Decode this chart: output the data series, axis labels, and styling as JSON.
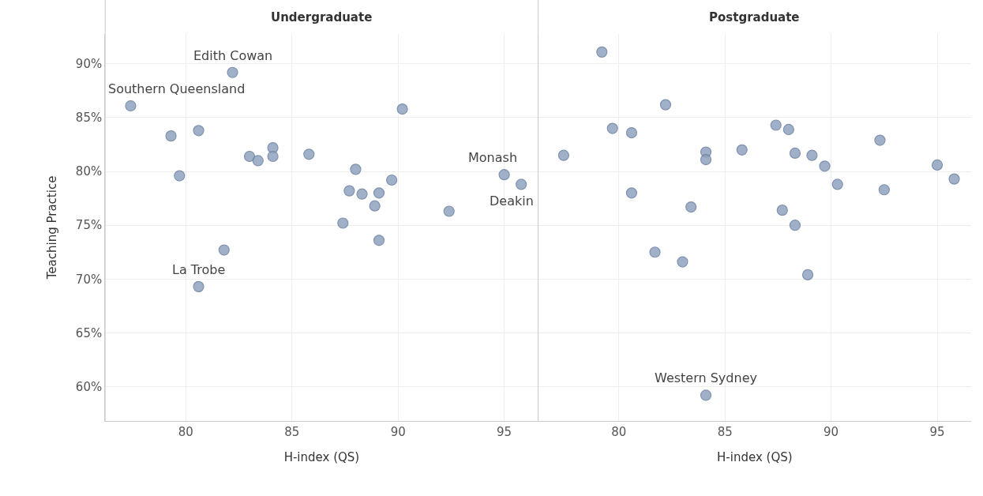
{
  "chart_data": [
    {
      "type": "scatter",
      "title": "Undergraduate",
      "xlabel": "H-index (QS)",
      "ylabel": "Teaching Practice",
      "color": "#8fa3bf",
      "marker": "circle",
      "grid": true,
      "x": [
        77.4,
        82.2,
        79.3,
        80.6,
        79.7,
        83.0,
        83.4,
        84.1,
        84.1,
        85.8,
        88.0,
        87.7,
        88.3,
        89.1,
        89.7,
        88.9,
        87.4,
        89.1,
        90.2,
        92.4,
        95.0,
        95.8,
        81.8,
        80.6
      ],
      "values": [
        86.1,
        89.2,
        83.3,
        83.8,
        79.6,
        81.4,
        81.0,
        82.2,
        81.4,
        81.6,
        80.2,
        78.2,
        77.9,
        78.0,
        79.2,
        76.8,
        75.2,
        73.6,
        85.8,
        76.3,
        79.7,
        78.8,
        72.7,
        69.3
      ],
      "xlim": [
        76.2,
        96.6
      ],
      "xticks": [
        80,
        85,
        90,
        95
      ],
      "ylim": [
        56.8,
        92.8
      ],
      "yticks": [
        {
          "value": 60,
          "label": "60%"
        },
        {
          "value": 65,
          "label": "65%"
        },
        {
          "value": 70,
          "label": "70%"
        },
        {
          "value": 75,
          "label": "75%"
        },
        {
          "value": 80,
          "label": "80%"
        },
        {
          "value": 85,
          "label": "85%"
        },
        {
          "value": 90,
          "label": "90%"
        }
      ],
      "annotations": [
        {
          "text": "Southern Queensland",
          "x": 77.4,
          "y": 86.1
        },
        {
          "text": "Edith Cowan",
          "x": 82.2,
          "y": 89.2
        },
        {
          "text": "Monash",
          "x": 95.0,
          "y": 79.7
        },
        {
          "text": "Deakin",
          "x": 95.8,
          "y": 78.8
        },
        {
          "text": "La Trobe",
          "x": 80.6,
          "y": 69.3
        }
      ]
    },
    {
      "type": "scatter",
      "title": "Postgraduate",
      "xlabel": "H-index (QS)",
      "color": "#8fa3bf",
      "marker": "circle",
      "grid": true,
      "tick_labels": "x",
      "x": [
        79.2,
        82.2,
        79.7,
        80.6,
        77.4,
        84.1,
        84.1,
        85.8,
        87.4,
        88.0,
        88.3,
        89.1,
        89.7,
        90.3,
        92.3,
        92.5,
        95.0,
        95.8,
        80.6,
        83.4,
        87.7,
        88.3,
        81.7,
        83.0,
        88.9,
        84.1
      ],
      "values": [
        91.1,
        86.2,
        84.0,
        83.6,
        81.5,
        81.8,
        81.1,
        82.0,
        84.3,
        83.9,
        81.7,
        81.5,
        80.5,
        78.8,
        82.9,
        78.3,
        80.6,
        79.3,
        78.0,
        76.7,
        76.4,
        75.0,
        72.5,
        71.6,
        70.4,
        59.2
      ],
      "xlim": [
        76.2,
        96.6
      ],
      "xticks": [
        80,
        85,
        90,
        95
      ],
      "ylim": [
        56.8,
        92.8
      ],
      "yticks": [
        {
          "value": 60,
          "label": null
        },
        {
          "value": 65,
          "label": null
        },
        {
          "value": 70,
          "label": null
        },
        {
          "value": 75,
          "label": null
        },
        {
          "value": 80,
          "label": null
        },
        {
          "value": 85,
          "label": null
        },
        {
          "value": 90,
          "label": null
        }
      ],
      "annotations": [
        {
          "text": "Western Sydney",
          "x": 84.1,
          "y": 59.2
        }
      ]
    }
  ]
}
